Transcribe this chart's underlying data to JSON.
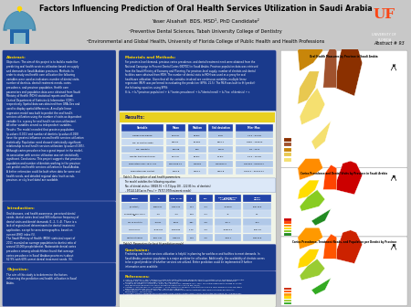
{
  "title": "Factors Influencing Prediction of Oral Health Services Utilization in Saudi Arabia",
  "author": "Yaser Alsahafi  BDS, MSD¹, PhD Candidate²",
  "affil1": "¹Preventive Dental Sciences, Tabah University College of Dentistry",
  "affil2": "²Environmental and Global Health, University of Florida College of Public Health and Health Professions",
  "abstract_number": "Abstract # 93",
  "panel_bg": "#1a3a8c",
  "panel_title_color": "#FFD700",
  "panel_text_color": "#ffffff",
  "header_bg": "#ffffff",
  "poster_bg": "#c8c8c8",
  "abstract_title": "Abstract:",
  "intro_title": "Introduction:",
  "obj_title": "Objective:",
  "mm_title": "Materials and Methods:",
  "results_title": "Results:",
  "table1_title": "Table1: Description of oral health parameters",
  "table1_headers": [
    "Variable",
    "Mean",
    "Median",
    "Std deviation",
    "Min- Max"
  ],
  "table1_rows": [
    [
      "Caries Prevalence",
      "62.07%",
      "59.8%",
      "5.9%",
      "73.4 - 54.0%"
    ],
    [
      "No. of dental Visits",
      "429.51",
      "25.954",
      "4640.7",
      "9382 - 123222"
    ],
    [
      "No. Dentists",
      "253.98",
      "163",
      "273.8",
      "26 - 1277"
    ],
    [
      "Dental treatment need",
      "61.77%",
      "60.8%",
      "11.5%",
      "13.4 - 76.9%"
    ],
    [
      "Population over 18 yr old",
      "1253,635.27",
      "728893",
      "1787843.3",
      "284969 - 6087077"
    ],
    [
      "Population per dentist",
      "7664.8",
      "7344.7",
      "2310.8",
      "3479.4 - 30723.27"
    ]
  ],
  "table2_title": "Table2: Parameters for best fit prediction model",
  "table2_headers": [
    "Model",
    "B",
    "Std. Error",
    "t",
    "Sig.",
    "95% Confidence Interval\nLower Bound",
    "Upper Bound"
  ],
  "table2_rows": [
    [
      "(Constant)",
      "38828.91",
      "37805.22",
      "1.11",
      ".644",
      "-51448.8",
      "129719.8"
    ],
    [
      "Population over 18 yr\nold",
      ".140",
      ".016",
      "8.19",
      ".001",
      ".06",
      "1.4"
    ],
    [
      "No. of Dentists",
      "-222.81",
      "81.04",
      "-2.87",
      ".028",
      "-440.1",
      "-34.3"
    ],
    [
      "Caries Prev.",
      "-97124.04",
      "82463.83",
      "-1.19",
      ".273",
      "-249523.6",
      "15373.8"
    ],
    [
      "Treatment needs",
      "78717.97",
      "11882.8",
      "2.19",
      ".002",
      "-4447.1",
      "240922.8"
    ]
  ],
  "conclusion_title": "Conclusion:",
  "references_title": "References:",
  "map1_title": "Oral Health Measures by Province in Saudi Arabia",
  "map2_title": "Caries Prevalence and Dental Visits by Province in Saudi Arabia",
  "map3_title": "Caries Prevalence, Treatment Needs, and Population per Dentist by Province",
  "map1_colors": [
    "#8B3A0A",
    "#A0522D",
    "#C8A060",
    "#F0D080",
    "#FFE88A"
  ],
  "map2_colors": [
    "#CC0000",
    "#FF4400",
    "#FF8800",
    "#FFCC00",
    "#88CC44",
    "#228B22"
  ],
  "map3_colors": [
    "#CC2200",
    "#FF5500",
    "#FF9900",
    "#FFCC00",
    "#99CC33",
    "#33AA22"
  ]
}
